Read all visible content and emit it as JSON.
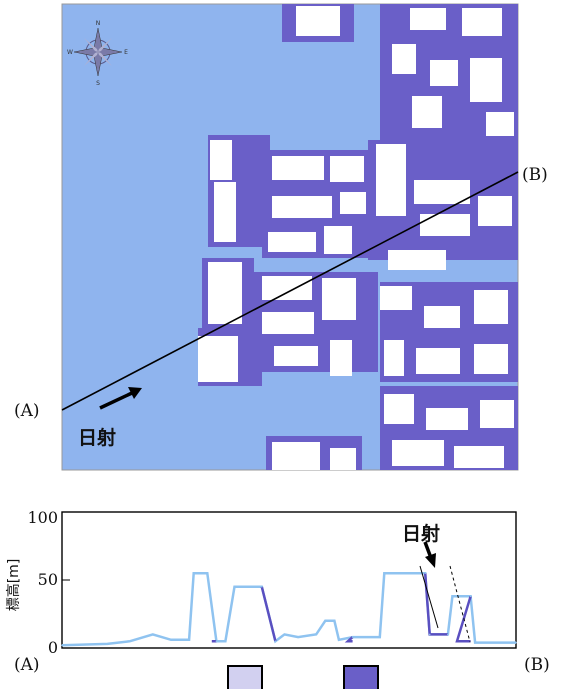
{
  "map": {
    "label_a": "(A)",
    "label_b": "(B)",
    "sun_label": "日射",
    "compass_letters": [
      "N",
      "E",
      "S",
      "W"
    ],
    "colors": {
      "ground": "#8fb4ee",
      "shadow": "#6a5fc8",
      "building": "#ffffff",
      "line": "#000000"
    }
  },
  "profile": {
    "ylabel": "標高[m]",
    "y_ticks": [
      "0",
      "50",
      "100"
    ],
    "ylim": [
      0,
      100
    ],
    "label_a": "(A)",
    "label_b": "(B)",
    "sun_label": "日射",
    "colors": {
      "terrain": "#8fc3f0",
      "shadow": "#5a4fc0"
    }
  },
  "legend": {
    "swatches": [
      {
        "color": "#d2d0f0"
      },
      {
        "color": "#6a5fc8"
      }
    ]
  },
  "chart_data": {
    "type": "line",
    "xlabel": "",
    "ylabel": "標高[m]",
    "ylim": [
      0,
      100
    ],
    "x": [
      0.0,
      0.1,
      0.15,
      0.2,
      0.24,
      0.28,
      0.29,
      0.32,
      0.34,
      0.36,
      0.38,
      0.44,
      0.47,
      0.49,
      0.52,
      0.56,
      0.58,
      0.6,
      0.61,
      0.64,
      0.7,
      0.71,
      0.72,
      0.8,
      0.81,
      0.85,
      0.86,
      0.9,
      0.91,
      1.0
    ],
    "series": [
      {
        "values": [
          2,
          3,
          5,
          10,
          6,
          6,
          55,
          55,
          5,
          5,
          45,
          45,
          5,
          10,
          8,
          10,
          20,
          20,
          6,
          8,
          8,
          55,
          55,
          55,
          10,
          10,
          38,
          38,
          4,
          4
        ]
      }
    ]
  }
}
